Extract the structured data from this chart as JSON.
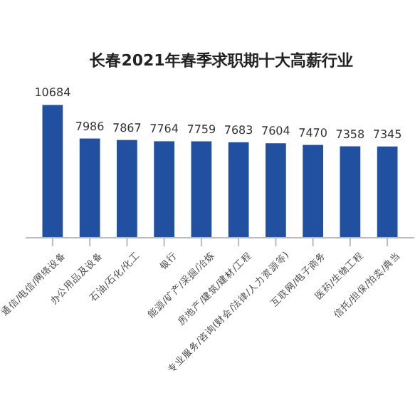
{
  "chart_data": {
    "type": "bar",
    "title": "长春2021年春季求职期十大高薪行业",
    "categories": [
      "通信/电信/网络设备",
      "办公用品及设备",
      "石油/石化/化工",
      "银行",
      "能源/矿产/采掘/冶炼",
      "房地产/建筑/建材/工程",
      "专业服务/咨询(财会/法律/人力资源等)",
      "互联网/电子商务",
      "医药/生物工程",
      "信托/担保/拍卖/典当"
    ],
    "values": [
      10684,
      7986,
      7867,
      7764,
      7759,
      7683,
      7604,
      7470,
      7358,
      7345
    ],
    "color": "#2150a0",
    "data_labels": true,
    "tick_labels": "x"
  }
}
